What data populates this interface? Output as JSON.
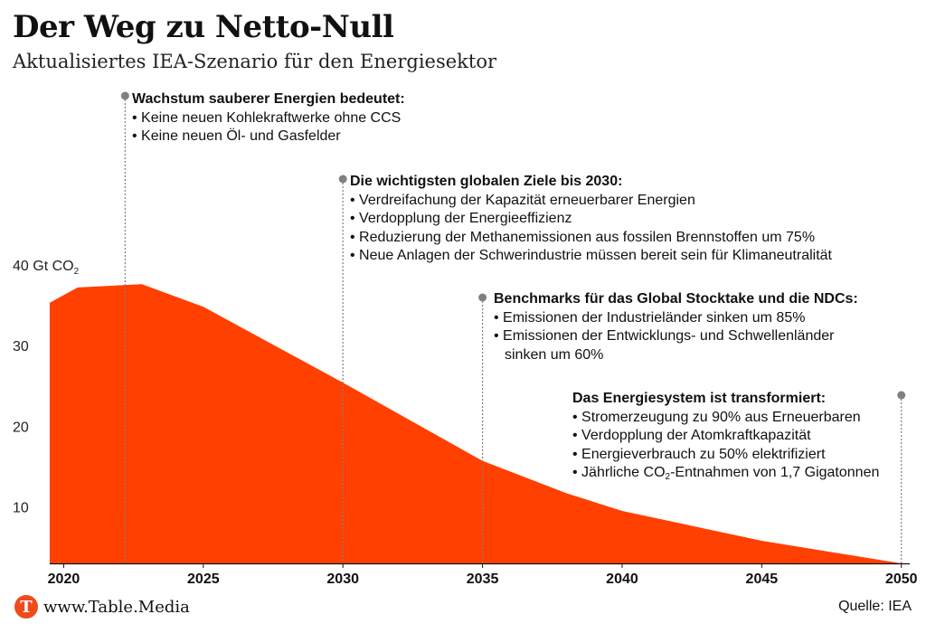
{
  "title": "Der Weg zu Netto-Null",
  "subtitle": "Aktualisiertes IEA-Szenario für den Energiesektor",
  "colors": {
    "area": "#ff4000",
    "marker": "#808080",
    "grid": "#aaaaaa",
    "logo": "#f04a1a"
  },
  "chart_data": {
    "type": "area",
    "ylabel": "Gt CO2",
    "ylim": [
      3,
      42
    ],
    "xlim": [
      2019.5,
      2050.3
    ],
    "xticks": [
      2020,
      2025,
      2030,
      2035,
      2040,
      2045,
      2050
    ],
    "yticks": [
      {
        "value": 10,
        "label": "10",
        "unit": ""
      },
      {
        "value": 20,
        "label": "20",
        "unit": ""
      },
      {
        "value": 30,
        "label": "30",
        "unit": ""
      },
      {
        "value": 40,
        "label": "40",
        "unit": "Gt CO",
        "unit_sub": "2"
      }
    ],
    "series": [
      {
        "x": [
          2019.5,
          2020.5,
          2022.8,
          2025,
          2030,
          2035,
          2038,
          2040,
          2045,
          2050
        ],
        "values": [
          35.3,
          37.2,
          37.6,
          34.8,
          25.4,
          15.7,
          11.7,
          9.5,
          5.8,
          3.0
        ]
      }
    ],
    "annotations": [
      {
        "year": 2022.2,
        "heading": "Wachstum sauberer Energien bedeutet:",
        "items": [
          "• Keine neuen Kohlekraftwerke ohne CCS",
          "• Keine neuen Öl- und Gasfelder"
        ]
      },
      {
        "year": 2030,
        "heading": "Die wichtigsten globalen Ziele bis 2030:",
        "items": [
          "• Verdreifachung der Kapazität erneuerbarer Energien",
          "• Verdopplung der Energieeffizienz",
          "• Reduzierung der Methanemissionen aus fossilen Brennstoffen um 75%",
          "• Neue Anlagen der Schwerindustrie müssen bereit sein für Klimaneutralität"
        ]
      },
      {
        "year": 2035,
        "heading": "Benchmarks für das Global Stocktake und die NDCs:",
        "items": [
          "• Emissionen der Industrieländer sinken um 85%",
          "• Emissionen der Entwicklungs- und Schwellenländer",
          "sinken um 60%"
        ]
      },
      {
        "year": 2050,
        "heading": "Das Energiesystem ist transformiert:",
        "items": [
          "• Stromerzeugung zu 90% aus Erneuerbaren",
          "• Verdopplung der Atomkraftkapazität",
          "• Energieverbrauch zu 50% elektrifiziert"
        ],
        "item_co2": {
          "before": "• Jährliche CO",
          "sub": "2",
          "after": "-Entnahmen von 1,7 Gigatonnen"
        }
      }
    ]
  },
  "footer": {
    "logo_letter": "T",
    "site": "www.Table.Media",
    "source": "Quelle: IEA"
  }
}
